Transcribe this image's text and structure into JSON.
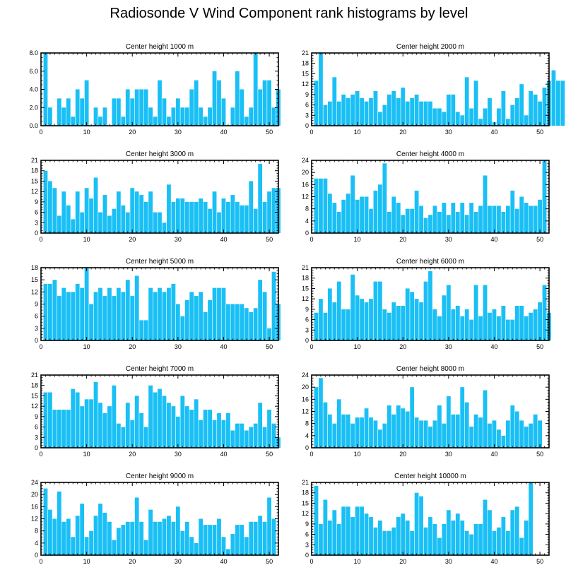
{
  "title": "Radiosonde V Wind Component rank histograms by level",
  "colors": {
    "bar": "#1ac0f5",
    "axis": "#000000",
    "background": "#ffffff"
  },
  "chart_data": [
    {
      "type": "bar",
      "title": "Center height 1000 m",
      "xlim": [
        0,
        52
      ],
      "ylim": [
        0,
        8
      ],
      "yticks": [
        0,
        2,
        4,
        6,
        8
      ],
      "ytick_labels": [
        "0.0",
        "2.0",
        "4.0",
        "6.0",
        "8.0"
      ],
      "xticks": [
        0,
        10,
        20,
        30,
        40,
        50
      ],
      "values": [
        8,
        2,
        0,
        3,
        2,
        3,
        1,
        4,
        3,
        5,
        0,
        2,
        1,
        2,
        0,
        3,
        3,
        1,
        4,
        3,
        4,
        4,
        4,
        2,
        1,
        5,
        3,
        1,
        2,
        3,
        2,
        2,
        4,
        5,
        2,
        1,
        2,
        6,
        5,
        3,
        0,
        2,
        6,
        4,
        1,
        2,
        8,
        4,
        5,
        5,
        2,
        4
      ]
    },
    {
      "type": "bar",
      "title": "Center height 2000 m",
      "xlim": [
        0,
        52
      ],
      "ylim": [
        0,
        21
      ],
      "yticks": [
        0,
        3,
        6,
        9,
        12,
        15,
        18,
        21
      ],
      "ytick_labels": [
        "0",
        "3",
        "6",
        "9",
        "12",
        "15",
        "18",
        "21"
      ],
      "xticks": [
        0,
        10,
        20,
        30,
        40,
        50
      ],
      "values": [
        13,
        21,
        6,
        7,
        14,
        7,
        9,
        8,
        9,
        10,
        8,
        7,
        8,
        10,
        4,
        6,
        9,
        10,
        8,
        11,
        7,
        8,
        9,
        7,
        7,
        7,
        5,
        5,
        4,
        9,
        9,
        4,
        3,
        14,
        5,
        13,
        2,
        5,
        8,
        1,
        5,
        10,
        2,
        6,
        8,
        12,
        3,
        10,
        9,
        7,
        11,
        13,
        16,
        13,
        13
      ]
    },
    {
      "type": "bar",
      "title": "Center height 3000 m",
      "xlim": [
        0,
        52
      ],
      "ylim": [
        0,
        21
      ],
      "yticks": [
        0,
        3,
        6,
        9,
        12,
        15,
        18,
        21
      ],
      "ytick_labels": [
        "0",
        "3",
        "6",
        "9",
        "12",
        "15",
        "18",
        "21"
      ],
      "xticks": [
        0,
        10,
        20,
        30,
        40,
        50
      ],
      "values": [
        18,
        15,
        13,
        5,
        12,
        8,
        4,
        12,
        6,
        13,
        10,
        16,
        6,
        11,
        5,
        7,
        12,
        8,
        6,
        13,
        12,
        11,
        9,
        12,
        6,
        6,
        3,
        14,
        9,
        10,
        10,
        9,
        9,
        9,
        10,
        9,
        7,
        12,
        6,
        10,
        9,
        11,
        9,
        8,
        8,
        15,
        7,
        20,
        9,
        12,
        13,
        13
      ]
    },
    {
      "type": "bar",
      "title": "Center height 4000 m",
      "xlim": [
        0,
        52
      ],
      "ylim": [
        0,
        24
      ],
      "yticks": [
        0,
        4,
        8,
        12,
        16,
        20,
        24
      ],
      "ytick_labels": [
        "0",
        "4",
        "8",
        "12",
        "16",
        "20",
        "24"
      ],
      "xticks": [
        0,
        10,
        20,
        30,
        40,
        50
      ],
      "values": [
        18,
        18,
        18,
        13,
        10,
        7,
        11,
        13,
        19,
        11,
        12,
        12,
        8,
        14,
        16,
        23,
        7,
        12,
        10,
        6,
        8,
        8,
        14,
        9,
        5,
        6,
        9,
        7,
        10,
        6,
        10,
        7,
        10,
        6,
        10,
        7,
        9,
        19,
        9,
        9,
        9,
        7,
        9,
        14,
        8,
        12,
        10,
        9,
        9,
        11,
        24
      ]
    },
    {
      "type": "bar",
      "title": "Center height 5000 m",
      "xlim": [
        0,
        52
      ],
      "ylim": [
        0,
        18
      ],
      "yticks": [
        0,
        3,
        6,
        9,
        12,
        15,
        18
      ],
      "ytick_labels": [
        "0",
        "3",
        "6",
        "9",
        "12",
        "15",
        "18"
      ],
      "xticks": [
        0,
        10,
        20,
        30,
        40,
        50
      ],
      "values": [
        14,
        14,
        15,
        11,
        13,
        12,
        12,
        14,
        13,
        18,
        9,
        12,
        13,
        11,
        13,
        11,
        13,
        12,
        15,
        11,
        16,
        5,
        5,
        13,
        12,
        13,
        12,
        13,
        14,
        9,
        6,
        10,
        12,
        11,
        12,
        7,
        10,
        13,
        13,
        13,
        9,
        9,
        9,
        9,
        8,
        7,
        8,
        15,
        12,
        3,
        17,
        9
      ]
    },
    {
      "type": "bar",
      "title": "Center height 6000 m",
      "xlim": [
        0,
        52
      ],
      "ylim": [
        0,
        21
      ],
      "yticks": [
        0,
        3,
        6,
        9,
        12,
        15,
        18,
        21
      ],
      "ytick_labels": [
        "0",
        "3",
        "6",
        "9",
        "12",
        "15",
        "18",
        "21"
      ],
      "xticks": [
        0,
        10,
        20,
        30,
        40,
        50
      ],
      "values": [
        8,
        12,
        8,
        15,
        11,
        17,
        9,
        9,
        19,
        13,
        12,
        11,
        12,
        17,
        17,
        9,
        8,
        11,
        10,
        10,
        15,
        14,
        12,
        11,
        17,
        20,
        9,
        7,
        13,
        16,
        9,
        10,
        7,
        9,
        6,
        16,
        7,
        16,
        8,
        9,
        7,
        10,
        6,
        6,
        10,
        10,
        7,
        8,
        9,
        11,
        16,
        8
      ]
    },
    {
      "type": "bar",
      "title": "Center height 7000 m",
      "xlim": [
        0,
        52
      ],
      "ylim": [
        0,
        21
      ],
      "yticks": [
        0,
        3,
        6,
        9,
        12,
        15,
        18,
        21
      ],
      "ytick_labels": [
        "0",
        "3",
        "6",
        "9",
        "12",
        "15",
        "18",
        "21"
      ],
      "xticks": [
        0,
        10,
        20,
        30,
        40,
        50
      ],
      "values": [
        16,
        16,
        11,
        11,
        11,
        11,
        17,
        16,
        12,
        14,
        14,
        19,
        13,
        10,
        12,
        18,
        7,
        6,
        13,
        8,
        15,
        10,
        6,
        18,
        16,
        17,
        15,
        13,
        12,
        9,
        15,
        12,
        11,
        14,
        8,
        11,
        11,
        8,
        10,
        8,
        10,
        5,
        7,
        7,
        5,
        6,
        7,
        13,
        6,
        11,
        7,
        3
      ]
    },
    {
      "type": "bar",
      "title": "Center height 8000 m",
      "xlim": [
        0,
        52
      ],
      "ylim": [
        0,
        24
      ],
      "yticks": [
        0,
        4,
        8,
        12,
        16,
        20,
        24
      ],
      "ytick_labels": [
        "0",
        "4",
        "8",
        "12",
        "16",
        "20",
        "24"
      ],
      "xticks": [
        0,
        10,
        20,
        30,
        40,
        50
      ],
      "values": [
        20,
        23,
        15,
        11,
        8,
        16,
        11,
        11,
        8,
        10,
        10,
        13,
        10,
        9,
        6,
        8,
        14,
        11,
        14,
        13,
        12,
        20,
        10,
        9,
        9,
        7,
        9,
        14,
        8,
        17,
        11,
        11,
        20,
        15,
        7,
        11,
        10,
        19,
        8,
        9,
        6,
        4,
        9,
        14,
        12,
        9,
        7,
        8,
        11,
        9
      ]
    },
    {
      "type": "bar",
      "title": "Center height 9000 m",
      "xlim": [
        0,
        52
      ],
      "ylim": [
        0,
        24
      ],
      "yticks": [
        0,
        4,
        8,
        12,
        16,
        20,
        24
      ],
      "ytick_labels": [
        "0",
        "4",
        "8",
        "12",
        "16",
        "20",
        "24"
      ],
      "xticks": [
        0,
        10,
        20,
        30,
        40,
        50
      ],
      "values": [
        22,
        15,
        12,
        21,
        11,
        12,
        6,
        13,
        17,
        6,
        8,
        13,
        17,
        14,
        11,
        5,
        9,
        10,
        11,
        11,
        19,
        11,
        5,
        15,
        11,
        11,
        12,
        13,
        11,
        16,
        8,
        11,
        6,
        4,
        12,
        10,
        10,
        10,
        12,
        6,
        2,
        7,
        10,
        10,
        6,
        11,
        11,
        13,
        11,
        19,
        12
      ]
    },
    {
      "type": "bar",
      "title": "Center height 10000 m",
      "xlim": [
        0,
        52
      ],
      "ylim": [
        0,
        21
      ],
      "yticks": [
        0,
        3,
        6,
        9,
        12,
        15,
        18,
        21
      ],
      "ytick_labels": [
        "0",
        "3",
        "6",
        "9",
        "12",
        "15",
        "18",
        "21"
      ],
      "xticks": [
        0,
        10,
        20,
        30,
        40,
        50
      ],
      "values": [
        20,
        9,
        16,
        10,
        13,
        9,
        14,
        14,
        11,
        14,
        14,
        12,
        11,
        8,
        10,
        7,
        7,
        8,
        11,
        12,
        10,
        7,
        18,
        17,
        8,
        11,
        9,
        5,
        9,
        13,
        10,
        12,
        10,
        7,
        6,
        9,
        9,
        16,
        13,
        7,
        8,
        11,
        7,
        13,
        14,
        5,
        10,
        21
      ]
    }
  ]
}
